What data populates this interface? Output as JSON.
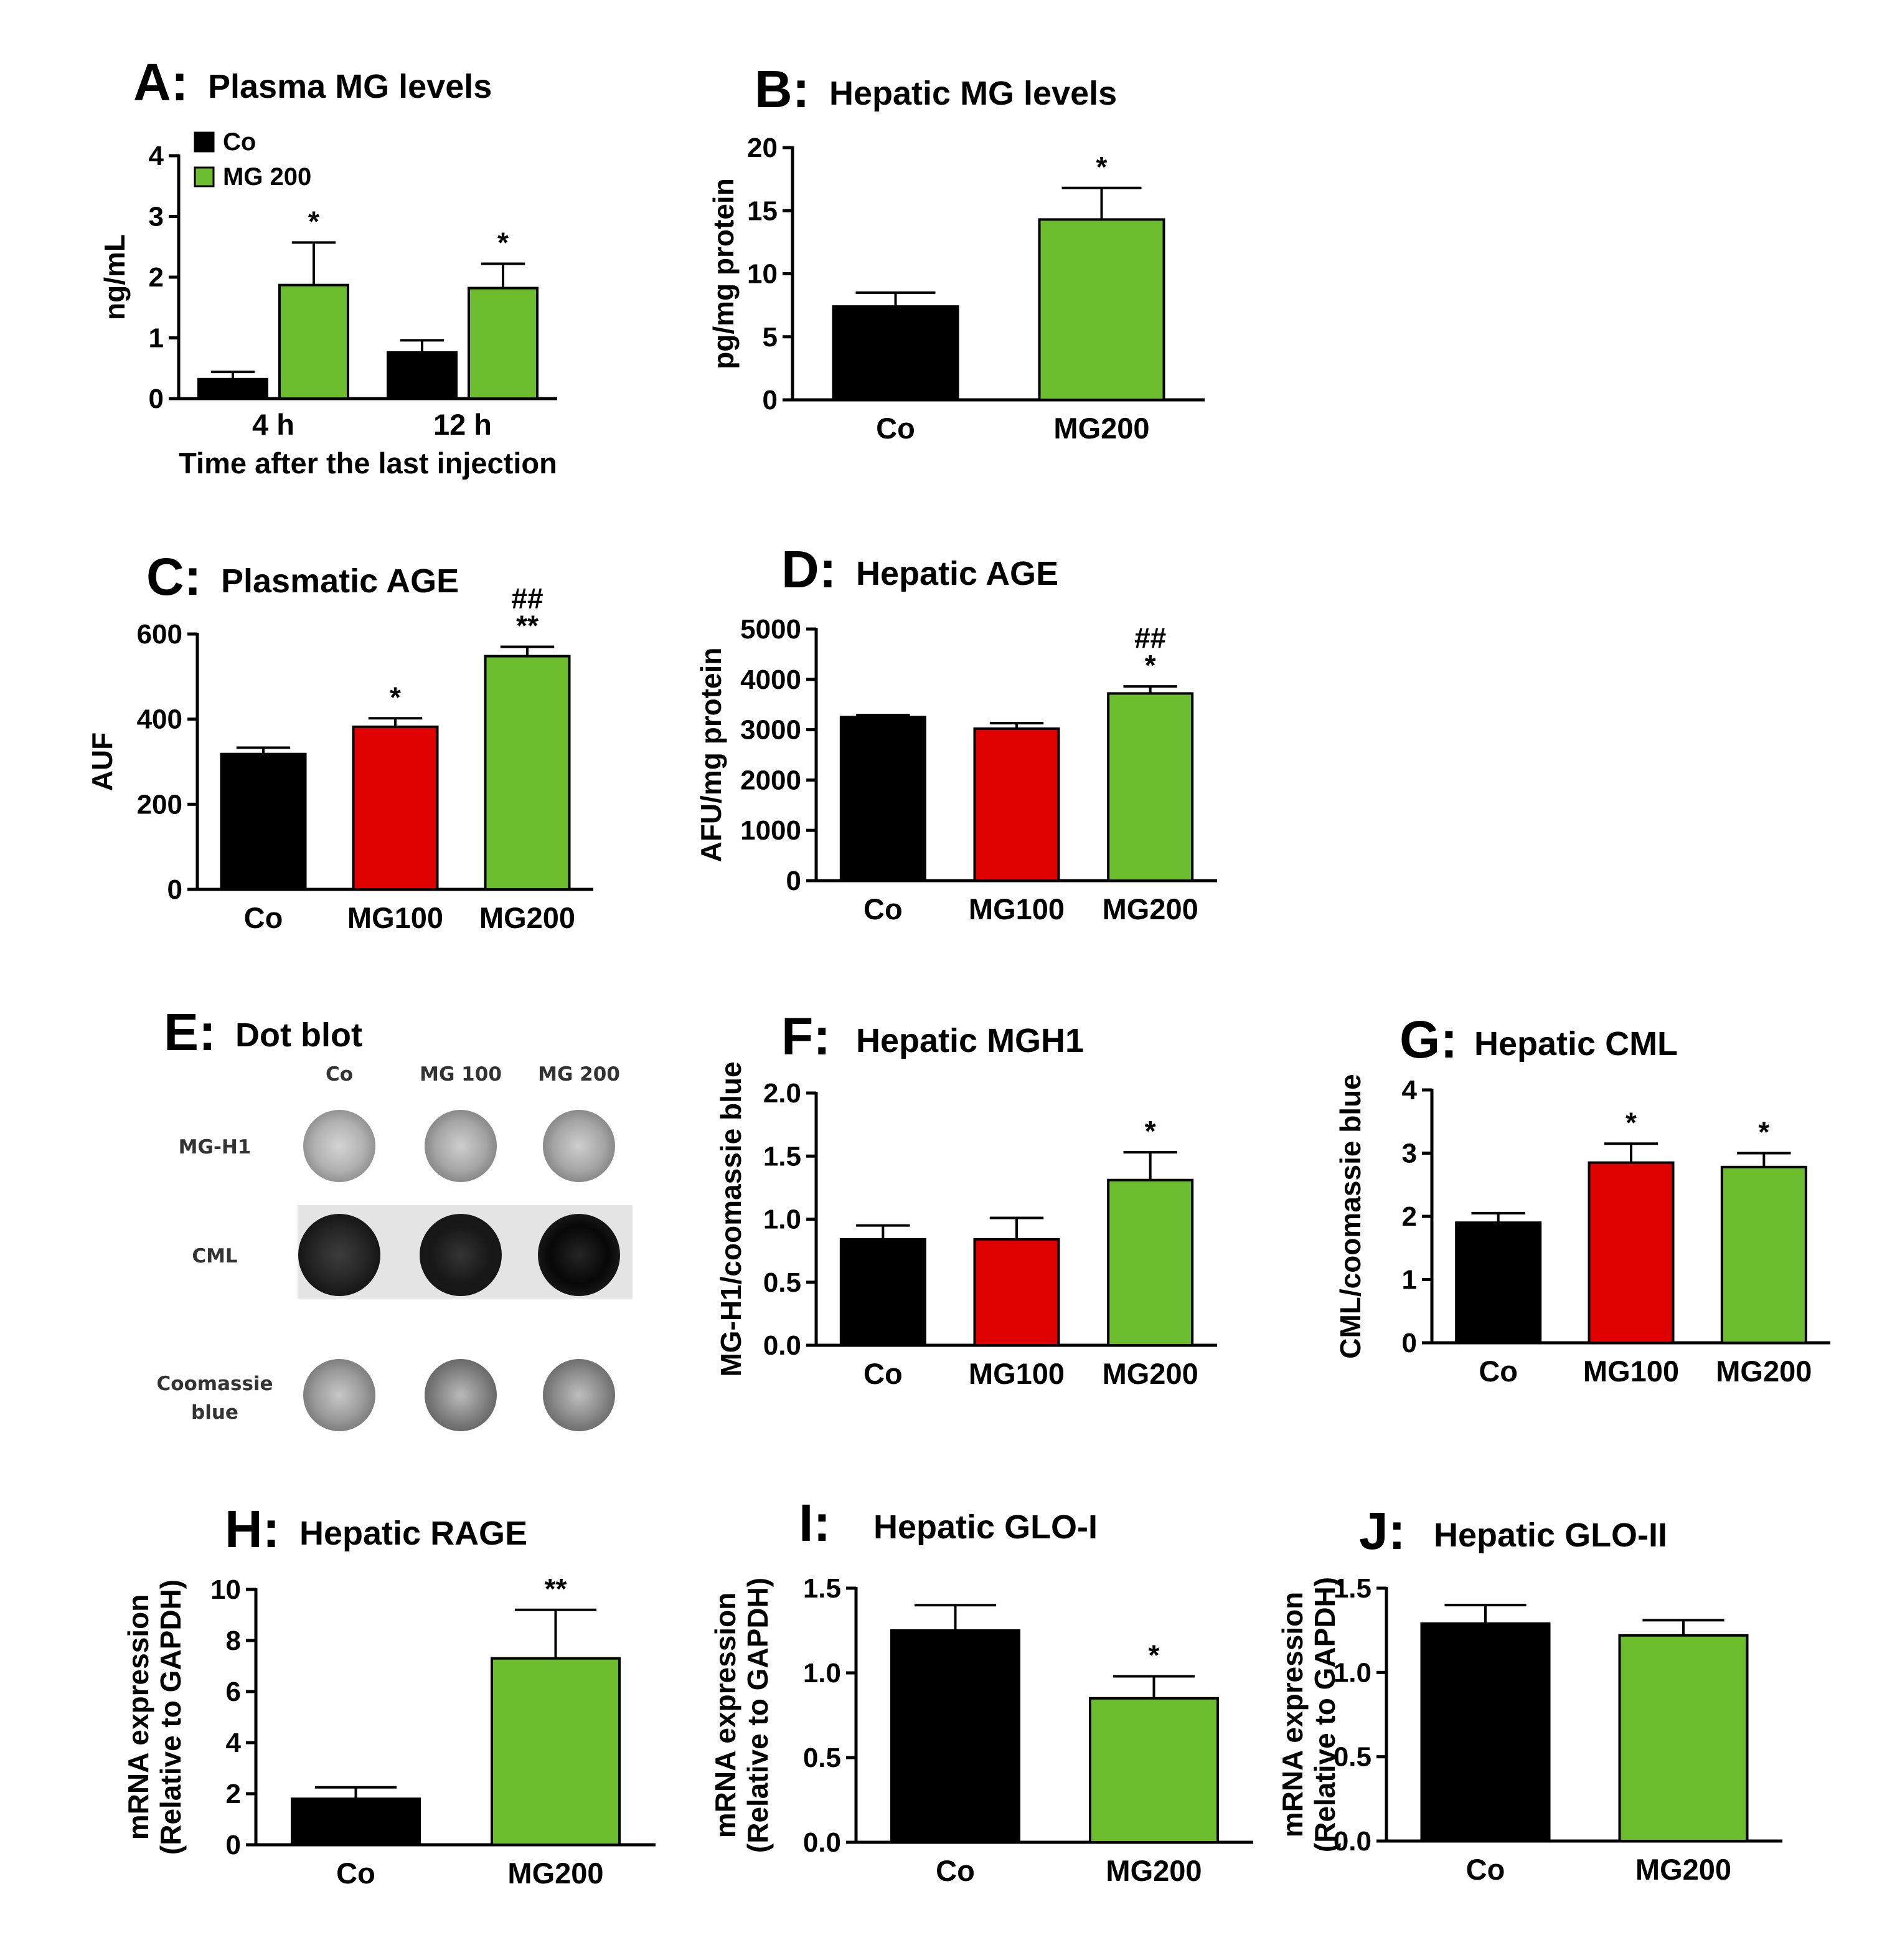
{
  "colors": {
    "Co": "#000000",
    "MG100": "#e00000",
    "MG200": "#6cbd2e"
  },
  "chart_data": [
    {
      "panel": "A:",
      "title": "Plasma MG levels",
      "type": "bar",
      "categories": [
        "4 h",
        "12 h"
      ],
      "series": [
        {
          "name": "Co",
          "color": "#000000",
          "values": [
            0.32,
            0.76
          ],
          "errors": [
            0.12,
            0.2
          ],
          "sig": [
            "",
            ""
          ]
        },
        {
          "name": "MG 200",
          "color": "#6cbd2e",
          "values": [
            1.87,
            1.82
          ],
          "errors": [
            0.7,
            0.4
          ],
          "sig": [
            "*",
            "*"
          ]
        }
      ],
      "ylabel": "ng/mL",
      "xlabel": "Time after the last injection",
      "ylim": [
        0,
        4
      ],
      "yticks": [
        "0",
        "1",
        "2",
        "3",
        "4"
      ],
      "legend": "top-left"
    },
    {
      "panel": "B:",
      "title": "Hepatic MG levels",
      "type": "bar",
      "categories": [
        "Co",
        "MG200"
      ],
      "values": [
        7.4,
        14.3
      ],
      "errors": [
        1.1,
        2.5
      ],
      "sig": [
        "",
        "*"
      ],
      "sig2": [
        "",
        ""
      ],
      "colors": [
        "#000000",
        "#6cbd2e"
      ],
      "ylabel": "pg/mg protein",
      "ylim": [
        0,
        20
      ],
      "yticks": [
        "0",
        "5",
        "10",
        "15",
        "20"
      ]
    },
    {
      "panel": "C:",
      "title": "Plasmatic AGE",
      "type": "bar",
      "categories": [
        "Co",
        "MG100",
        "MG200"
      ],
      "values": [
        318,
        382,
        548
      ],
      "errors": [
        15,
        20,
        22
      ],
      "sig": [
        "",
        "*",
        "**"
      ],
      "sig2": [
        "",
        "",
        "##"
      ],
      "colors": [
        "#000000",
        "#e00000",
        "#6cbd2e"
      ],
      "ylabel": "AUF",
      "ylim": [
        0,
        600
      ],
      "yticks": [
        "0",
        "200",
        "400",
        "600"
      ]
    },
    {
      "panel": "D:",
      "title": "Hepatic AGE",
      "type": "bar",
      "categories": [
        "Co",
        "MG100",
        "MG200"
      ],
      "values": [
        3250,
        3020,
        3720
      ],
      "errors": [
        40,
        110,
        140
      ],
      "sig": [
        "",
        "",
        "*"
      ],
      "sig2": [
        "",
        "",
        "##"
      ],
      "colors": [
        "#000000",
        "#e00000",
        "#6cbd2e"
      ],
      "ylabel": "AFU/mg protein",
      "ylim": [
        0,
        5000
      ],
      "yticks": [
        "0",
        "1000",
        "2000",
        "3000",
        "4000",
        "5000"
      ]
    },
    {
      "panel": "F:",
      "title": "Hepatic MGH1",
      "type": "bar",
      "categories": [
        "Co",
        "MG100",
        "MG200"
      ],
      "values": [
        0.84,
        0.84,
        1.31
      ],
      "errors": [
        0.11,
        0.17,
        0.22
      ],
      "sig": [
        "",
        "",
        "*"
      ],
      "sig2": [
        "",
        "",
        ""
      ],
      "colors": [
        "#000000",
        "#e00000",
        "#6cbd2e"
      ],
      "ylabel": "MG-H1/coomassie blue",
      "ylim": [
        0,
        2
      ],
      "yticks": [
        "0.0",
        "0.5",
        "1.0",
        "1.5",
        "2.0"
      ]
    },
    {
      "panel": "G:",
      "title": "Hepatic CML",
      "type": "bar",
      "categories": [
        "Co",
        "MG100",
        "MG200"
      ],
      "values": [
        1.9,
        2.85,
        2.78
      ],
      "errors": [
        0.15,
        0.3,
        0.22
      ],
      "sig": [
        "",
        "*",
        "*"
      ],
      "sig2": [
        "",
        "",
        ""
      ],
      "colors": [
        "#000000",
        "#e00000",
        "#6cbd2e"
      ],
      "ylabel": "CML/coomassie blue",
      "ylim": [
        0,
        4
      ],
      "yticks": [
        "0",
        "1",
        "2",
        "3",
        "4"
      ]
    },
    {
      "panel": "H:",
      "title": "Hepatic RAGE",
      "type": "bar",
      "categories": [
        "Co",
        "MG200"
      ],
      "values": [
        1.8,
        7.3
      ],
      "errors": [
        0.45,
        1.9
      ],
      "sig": [
        "",
        "**"
      ],
      "sig2": [
        "",
        ""
      ],
      "colors": [
        "#000000",
        "#6cbd2e"
      ],
      "ylabel": "mRNA expression",
      "ylabel2": "(Relative to GAPDH)",
      "ylim": [
        0,
        10
      ],
      "yticks": [
        "0",
        "2",
        "4",
        "6",
        "8",
        "10"
      ]
    },
    {
      "panel": "I:",
      "title": "Hepatic GLO-I",
      "type": "bar",
      "categories": [
        "Co",
        "MG200"
      ],
      "values": [
        1.25,
        0.85
      ],
      "errors": [
        0.15,
        0.13
      ],
      "sig": [
        "",
        "*"
      ],
      "sig2": [
        "",
        ""
      ],
      "colors": [
        "#000000",
        "#6cbd2e"
      ],
      "ylabel": "mRNA expression",
      "ylabel2": "(Relative to GAPDH)",
      "ylim": [
        0,
        1.5
      ],
      "yticks": [
        "0.0",
        "0.5",
        "1.0",
        "1.5"
      ]
    },
    {
      "panel": "J:",
      "title": "Hepatic GLO-II",
      "type": "bar",
      "categories": [
        "Co",
        "MG200"
      ],
      "values": [
        1.29,
        1.22
      ],
      "errors": [
        0.11,
        0.09
      ],
      "sig": [
        "",
        ""
      ],
      "sig2": [
        "",
        ""
      ],
      "colors": [
        "#000000",
        "#6cbd2e"
      ],
      "ylabel": "mRNA expression",
      "ylabel2": "(Relative to GAPDH)",
      "ylim": [
        0,
        1.5
      ],
      "yticks": [
        "0.0",
        "0.5",
        "1.0",
        "1.5"
      ]
    }
  ],
  "dot_blot": {
    "panel": "E:",
    "title": "Dot blot",
    "columns": [
      "Co",
      "MG 100",
      "MG 200"
    ],
    "rows": [
      {
        "label": "MG-H1",
        "intensity": [
          0.25,
          0.3,
          0.3
        ]
      },
      {
        "label": "CML",
        "intensity": [
          0.85,
          0.9,
          0.97
        ]
      },
      {
        "label": "Coomassie",
        "label2": "blue",
        "intensity": [
          0.35,
          0.45,
          0.42
        ]
      }
    ]
  }
}
